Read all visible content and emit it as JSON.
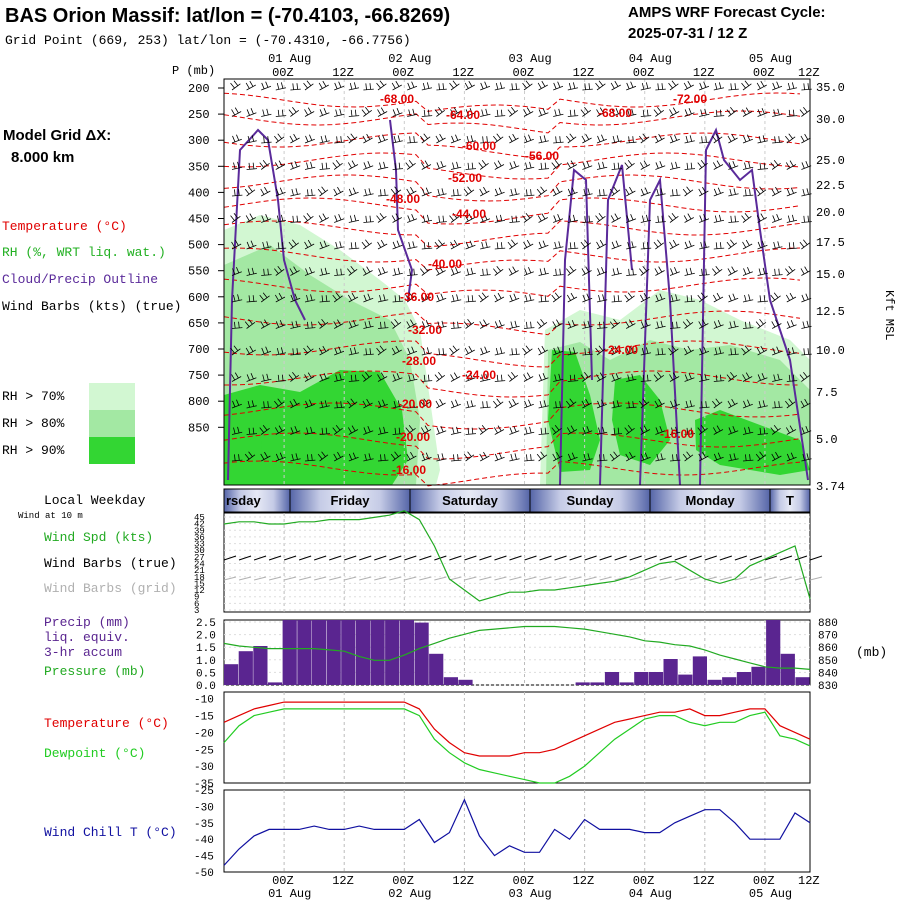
{
  "header": {
    "title": "BAS Orion Massif:  lat/lon = (-70.4103, -66.8269)",
    "subtitle": "Grid Point (669, 253) lat/lon = (-70.4310, -66.7756)",
    "forecast_line1": "AMPS WRF Forecast Cycle:",
    "forecast_line2": "2025-07-31 / 12  Z"
  },
  "model_grid": {
    "label": "Model Grid ΔX:",
    "value": "8.000 km"
  },
  "legend": {
    "temperature": "Temperature (°C)",
    "rh": "RH (%, WRT liq. wat.)",
    "cloud": "Cloud/Precip Outline",
    "wind": "Wind Barbs (kts) (true)",
    "rh70": "RH > 70%",
    "rh80": "RH > 80%",
    "rh90": "RH > 90%"
  },
  "colors": {
    "temperature": "#e00000",
    "rh": "#22b022",
    "cloud": "#5a2a9a",
    "wind": "#000000",
    "rh70": "#d2f7d2",
    "rh80": "#a3e8a3",
    "rh90": "#33d633",
    "precip": "#5a2590",
    "pressure": "#22aa22",
    "dewpoint": "#22cc22",
    "windchill": "#1010a0",
    "wind_spd": "#22aa22",
    "grid_barbs": "#b0b0b0"
  },
  "axes": {
    "p_label": "P (mb)",
    "kft_label": "Kft MSL",
    "date_labels": [
      "01 Aug",
      "02 Aug",
      "03 Aug",
      "04 Aug",
      "05 Aug"
    ],
    "time_labels": [
      "00Z",
      "12Z",
      "00Z",
      "12Z",
      "00Z",
      "12Z",
      "00Z",
      "12Z",
      "00Z",
      "12Z"
    ],
    "bottom_time_labels": [
      "00Z",
      "12Z",
      "00Z",
      "12Z",
      "00Z",
      "12Z",
      "00Z",
      "12Z",
      "00Z",
      "12Z"
    ],
    "bottom_date_labels": [
      "01 Aug",
      "02 Aug",
      "03 Aug",
      "04 Aug",
      "05 Aug"
    ],
    "pressure_ticks": [
      "200",
      "250",
      "300",
      "350",
      "400",
      "450",
      "500",
      "550",
      "600",
      "650",
      "700",
      "750",
      "800",
      "850"
    ],
    "kft_ticks": [
      "35.0",
      "30.0",
      "25.0",
      "22.5",
      "20.0",
      "17.5",
      "15.0",
      "12.5",
      "10.0",
      "7.5",
      "5.0",
      "3.74"
    ]
  },
  "weekday": {
    "label": "Local Weekday",
    "days": [
      "rsday",
      "Friday",
      "Saturday",
      "Sunday",
      "Monday",
      "T"
    ]
  },
  "wind_panel": {
    "wind_at": "Wind at 10 m",
    "spd_label": "Wind Spd (kts)",
    "barbs_true": "Wind Barbs (true)",
    "barbs_grid": "Wind Barbs (grid)",
    "ticks": [
      "45",
      "42",
      "39",
      "36",
      "33",
      "30",
      "27",
      "24",
      "21",
      "18",
      "15",
      "12",
      "9",
      "6",
      "3"
    ]
  },
  "precip_panel": {
    "label1": "Precip (mm)",
    "label2": "liq. equiv.",
    "label3": "3-hr accum",
    "label4": "Pressure (mb)",
    "left_ticks": [
      "2.5",
      "2.0",
      "1.5",
      "1.0",
      "0.5",
      "0.0"
    ],
    "right_ticks": [
      "880",
      "870",
      "860",
      "850",
      "840",
      "830"
    ],
    "unit": "(mb)"
  },
  "temp_panel": {
    "label1": "Temperature (°C)",
    "label2": "Dewpoint (°C)",
    "ticks": [
      "-10",
      "-15",
      "-20",
      "-25",
      "-30",
      "-35"
    ]
  },
  "chill_panel": {
    "label": "Wind Chill T (°C)",
    "ticks": [
      "-25",
      "-30",
      "-35",
      "-40",
      "-45",
      "-50"
    ]
  },
  "contour_labels": [
    "-68.00",
    "-64.00",
    "-68.00",
    "-72.00",
    "-60.00",
    "-56.00",
    "-52.00",
    "-48.00",
    "-44.00",
    "-40.00",
    "-36.00",
    "-32.00",
    "-28.00",
    "-24.00",
    "-24.00",
    "-20.00",
    "-20.00",
    "-16.00",
    "-16.00"
  ],
  "chart_data": [
    {
      "type": "line",
      "title": "Wind Spd (kts)",
      "x": [
        0,
        3,
        6,
        9,
        12,
        15,
        18,
        21,
        24,
        27,
        30,
        33,
        36,
        39,
        42,
        45,
        48,
        51,
        54,
        57,
        60,
        63,
        66,
        69,
        72,
        75,
        78,
        81,
        84,
        87,
        90,
        93,
        96,
        99,
        102,
        105,
        108,
        111,
        114,
        117
      ],
      "series": [
        {
          "name": "Wind Spd (kts)",
          "values": [
            40,
            41,
            41,
            40,
            40,
            41,
            41,
            42,
            42,
            42,
            43,
            44,
            46,
            42,
            30,
            15,
            10,
            5,
            7,
            9,
            9,
            10,
            10,
            11,
            12,
            13,
            14,
            16,
            19,
            22,
            23,
            19,
            15,
            13,
            15,
            21,
            24,
            27,
            30,
            6
          ]
        }
      ],
      "ylim": [
        0,
        45
      ]
    },
    {
      "type": "bar",
      "title": "Precip (mm) 3-hr accum",
      "x": [
        0,
        3,
        6,
        9,
        12,
        15,
        18,
        21,
        24,
        27,
        30,
        33,
        36,
        39,
        42,
        45,
        48,
        51,
        54,
        57,
        60,
        63,
        66,
        69,
        72,
        75,
        78,
        81,
        84,
        87,
        90,
        93,
        96,
        99,
        102,
        105,
        108,
        111,
        114,
        117
      ],
      "series": [
        {
          "name": "Precip (mm)",
          "values": [
            0.8,
            1.3,
            1.5,
            0.1,
            2.5,
            2.5,
            2.5,
            2.5,
            2.5,
            2.5,
            2.5,
            2.5,
            2.5,
            2.4,
            1.2,
            0.3,
            0.2,
            0.0,
            0.0,
            0.0,
            0.0,
            0.0,
            0.0,
            0.0,
            0.1,
            0.1,
            0.5,
            0.1,
            0.5,
            0.5,
            1.0,
            0.4,
            1.1,
            0.2,
            0.3,
            0.5,
            0.7,
            2.6,
            1.2,
            0.3
          ]
        },
        {
          "name": "Pressure (mb)",
          "values": [
            862,
            860,
            859,
            858,
            858,
            858,
            858,
            857,
            856,
            852,
            849,
            849,
            853,
            858,
            862,
            866,
            869,
            872,
            873,
            874,
            875,
            875,
            875,
            874,
            873,
            871,
            869,
            867,
            864,
            863,
            861,
            860,
            857,
            853,
            850,
            847,
            844,
            843,
            843,
            842
          ]
        }
      ],
      "ylim": [
        0,
        2.5
      ],
      "y2lim": [
        830,
        880
      ]
    },
    {
      "type": "line",
      "title": "Temperature / Dewpoint",
      "x": [
        0,
        3,
        6,
        9,
        12,
        15,
        18,
        21,
        24,
        27,
        30,
        33,
        36,
        39,
        42,
        45,
        48,
        51,
        54,
        57,
        60,
        63,
        66,
        69,
        72,
        75,
        78,
        81,
        84,
        87,
        90,
        93,
        96,
        99,
        102,
        105,
        108,
        111,
        114,
        117
      ],
      "series": [
        {
          "name": "Temperature (°C)",
          "values": [
            -17,
            -15,
            -13,
            -12,
            -11,
            -11,
            -11,
            -11,
            -11,
            -11,
            -11,
            -11,
            -11,
            -13,
            -19,
            -23,
            -26,
            -27,
            -27,
            -27,
            -26,
            -26,
            -25,
            -23,
            -21,
            -19,
            -17,
            -16,
            -15,
            -14,
            -14,
            -13,
            -15,
            -15,
            -14,
            -13,
            -13,
            -18,
            -20,
            -22
          ]
        },
        {
          "name": "Dewpoint (°C)",
          "values": [
            -23,
            -18,
            -15,
            -14,
            -13,
            -13,
            -13,
            -13,
            -13,
            -13,
            -13,
            -13,
            -13,
            -15,
            -22,
            -26,
            -29,
            -31,
            -32,
            -33,
            -34,
            -35,
            -35,
            -33,
            -30,
            -26,
            -22,
            -19,
            -16,
            -15,
            -15,
            -17,
            -18,
            -17,
            -17,
            -15,
            -14,
            -21,
            -22,
            -24
          ]
        }
      ],
      "ylim": [
        -35,
        -8
      ]
    },
    {
      "type": "line",
      "title": "Wind Chill T (°C)",
      "x": [
        0,
        3,
        6,
        9,
        12,
        15,
        18,
        21,
        24,
        27,
        30,
        33,
        36,
        39,
        42,
        45,
        48,
        51,
        54,
        57,
        60,
        63,
        66,
        69,
        72,
        75,
        78,
        81,
        84,
        87,
        90,
        93,
        96,
        99,
        102,
        105,
        108,
        111,
        114,
        117
      ],
      "series": [
        {
          "name": "Wind Chill T (°C)",
          "values": [
            -48,
            -43,
            -39,
            -37,
            -37,
            -37,
            -36,
            -37,
            -37,
            -36,
            -37,
            -37,
            -37,
            -34,
            -41,
            -38,
            -28,
            -39,
            -45,
            -42,
            -44,
            -44,
            -37,
            -40,
            -34,
            -37,
            -37,
            -37,
            -38,
            -38,
            -35,
            -33,
            -31,
            -31,
            -35,
            -40,
            -40,
            -40,
            -32,
            -35
          ]
        }
      ],
      "ylim": [
        -50,
        -25
      ]
    }
  ]
}
